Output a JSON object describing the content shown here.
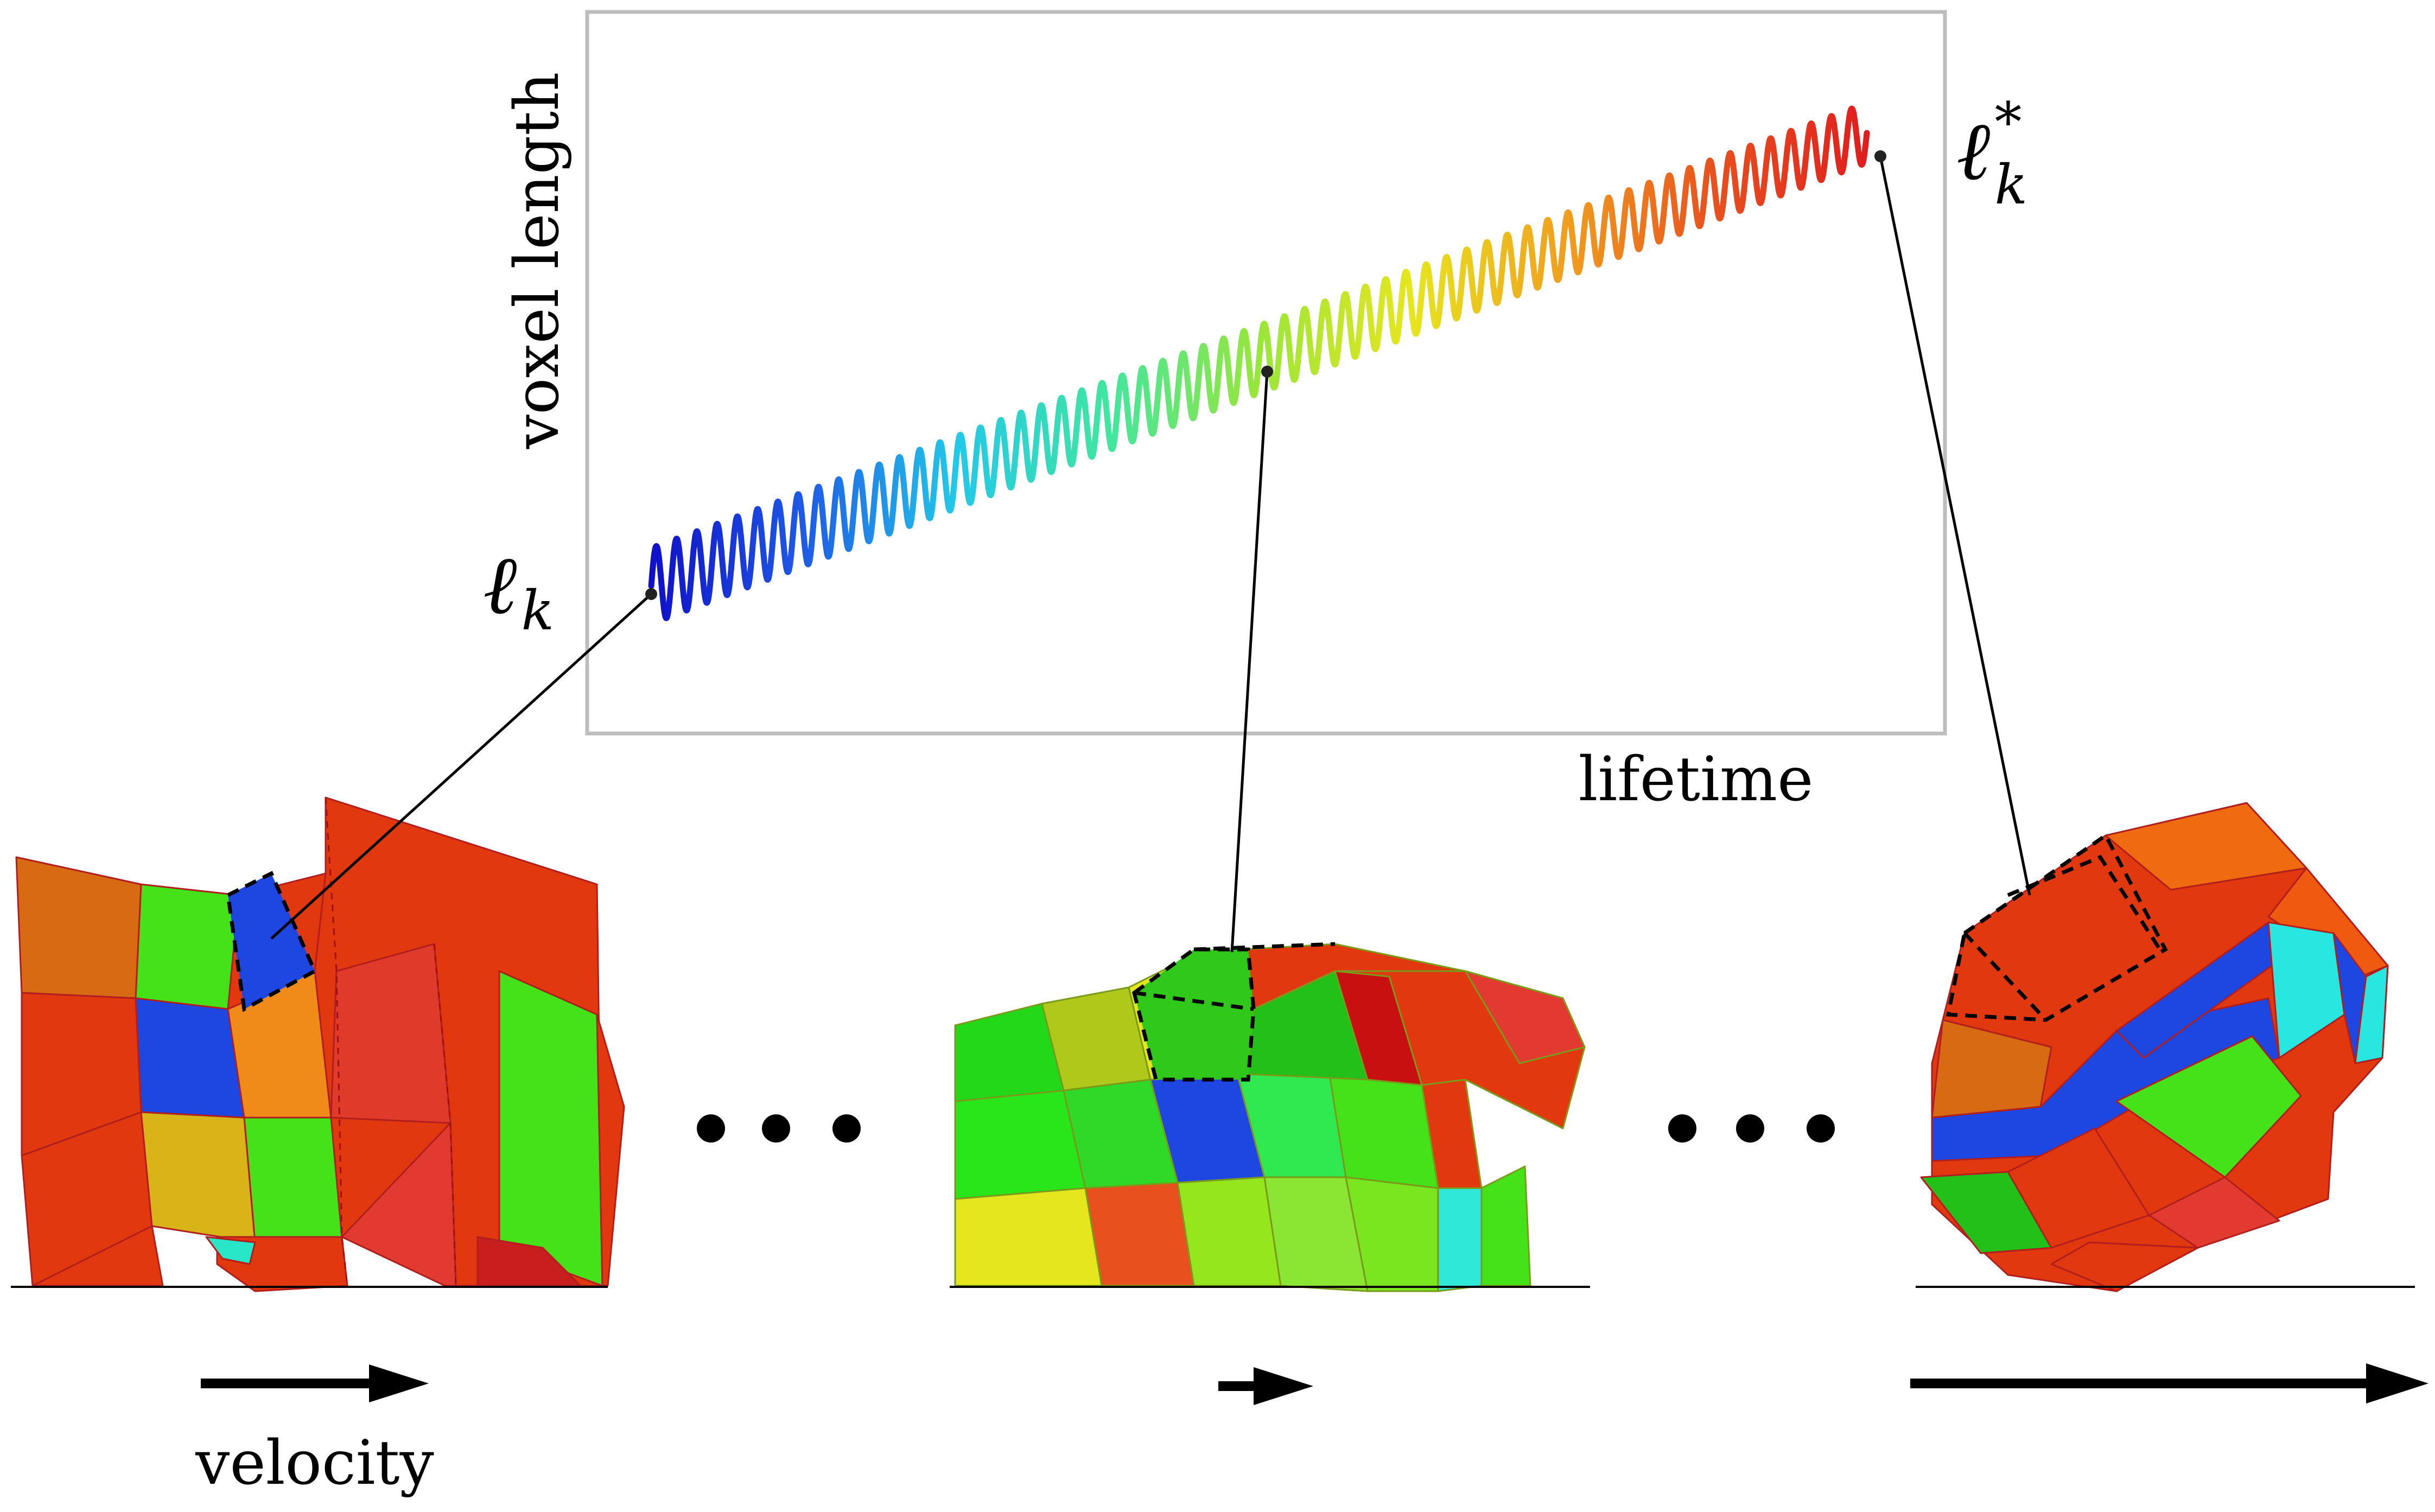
{
  "plot": {
    "ylabel": "voxel length",
    "xlabel": "lifetime",
    "start_label": "ℓ",
    "start_sub": "k",
    "end_label": "ℓ",
    "end_sub": "k",
    "end_sup": "*"
  },
  "velocity_label": "velocity",
  "ellipsis_mark": "•",
  "colors": {
    "frame": "#bdbdbd",
    "red": "#e2380f",
    "green": "#45e21a",
    "blue": "#1e46e0",
    "orange": "#e07010",
    "yellow": "#e6e21a",
    "cyan": "#28e6e0",
    "spring_gradient": [
      "#1010c8",
      "#1e5ae6",
      "#22c8e8",
      "#40e6a0",
      "#9ae63a",
      "#e6e61e",
      "#f0a01e",
      "#e8501e",
      "#e01e1e"
    ]
  },
  "icons": {
    "arrows": [
      "velocity-arrow-icon"
    ],
    "ellipsis": [
      "ellipsis-icon"
    ]
  }
}
